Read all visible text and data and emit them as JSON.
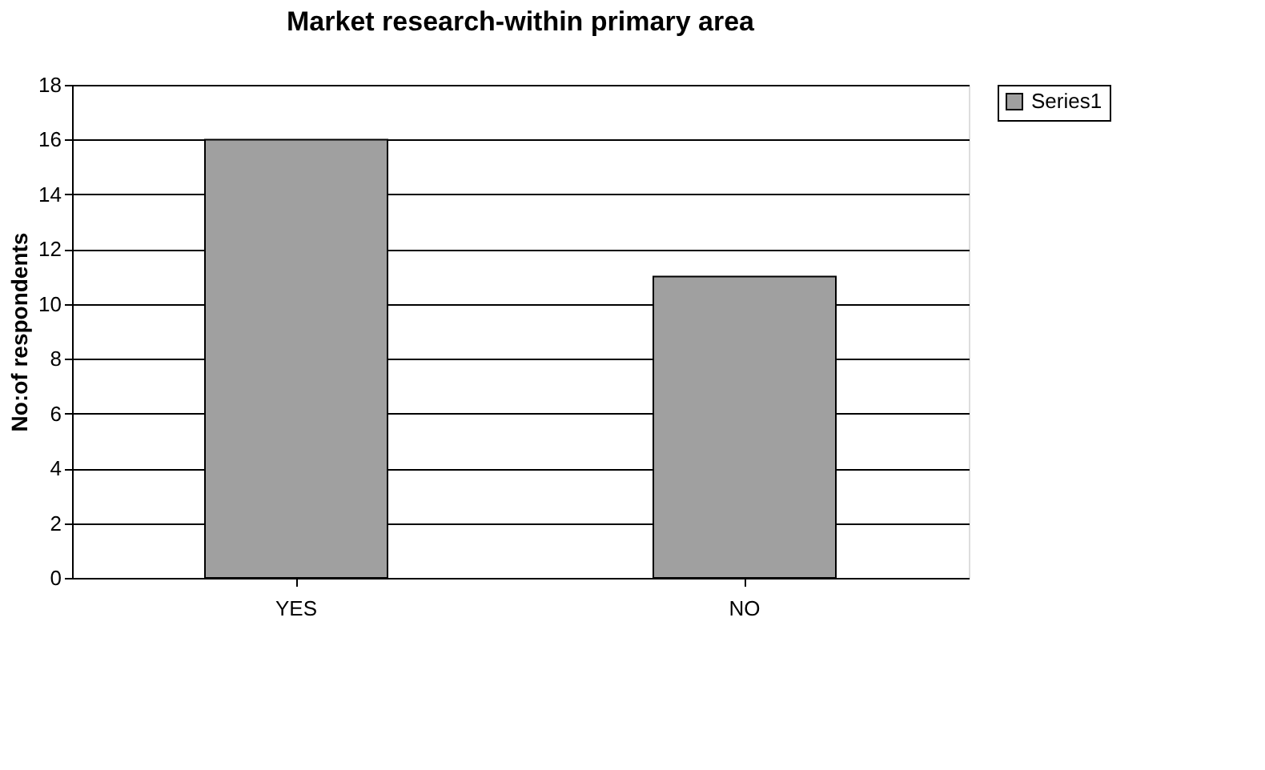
{
  "chart_data": {
    "type": "bar",
    "title": "Market research-within primary area",
    "ylabel": "No:of respondents",
    "categories": [
      "YES",
      "NO"
    ],
    "series": [
      {
        "name": "Series1",
        "color": "#a0a0a0",
        "values": [
          16,
          11
        ]
      }
    ],
    "ylim": [
      0,
      18
    ],
    "yticks": [
      0,
      2,
      4,
      6,
      8,
      10,
      12,
      14,
      16,
      18
    ],
    "grid": "y",
    "legend": "right"
  }
}
